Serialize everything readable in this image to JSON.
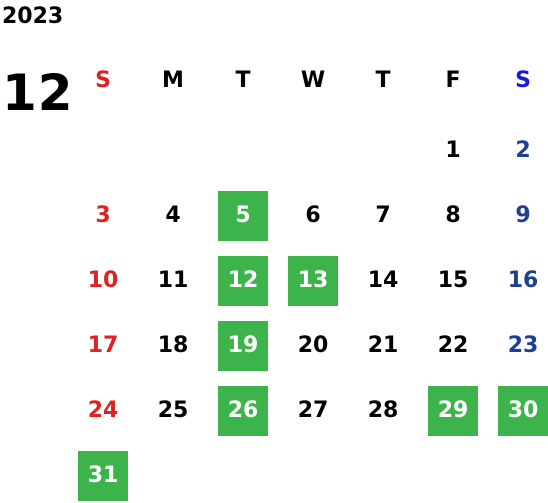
{
  "calendar": {
    "year": "2023",
    "month": "12",
    "weekdays": [
      "S",
      "M",
      "T",
      "W",
      "T",
      "F",
      "S"
    ],
    "days": [
      "",
      "",
      "",
      "",
      "",
      "1",
      "2",
      "3",
      "4",
      "5",
      "6",
      "7",
      "8",
      "9",
      "10",
      "11",
      "12",
      "13",
      "14",
      "15",
      "16",
      "17",
      "18",
      "19",
      "20",
      "21",
      "22",
      "23",
      "24",
      "25",
      "26",
      "27",
      "28",
      "29",
      "30",
      "31",
      "",
      "",
      "",
      "",
      "",
      ""
    ],
    "highlighted_days": [
      "5",
      "12",
      "13",
      "19",
      "26",
      "29",
      "30",
      "31"
    ]
  },
  "colors": {
    "highlight_bg": "#3cb44b",
    "sunday": "#dd2222",
    "saturday": "#1f3f94",
    "saturday_header": "#1a1ad0",
    "text": "#000000"
  }
}
